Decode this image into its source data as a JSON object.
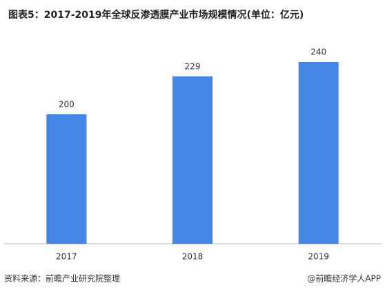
{
  "chart_data": {
    "type": "bar",
    "title": "图表5：2017-2019年全球反渗透膜产业市场规模情况(单位：亿元)",
    "categories": [
      "2017",
      "2018",
      "2019"
    ],
    "values": [
      200,
      229,
      240
    ],
    "color": "#4386e6",
    "source": "资料来源：前瞻产业研究院整理",
    "credit": "@前瞻经济学人APP"
  }
}
